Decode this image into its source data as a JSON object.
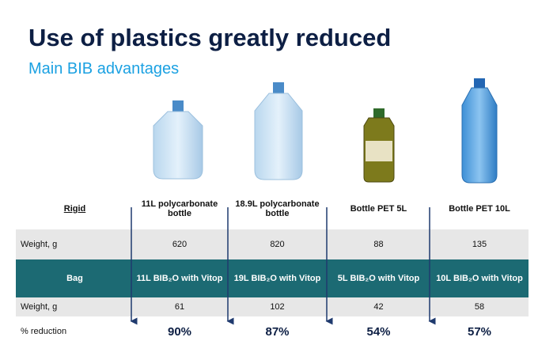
{
  "header": {
    "title": "Use of plastics greatly reduced",
    "subtitle": "Main BIB advantages"
  },
  "table": {
    "columns": [
      "Rigid",
      "11L polycarbonate bottle",
      "18.9L polycarbonate bottle",
      "Bottle PET 5L",
      "Bottle PET 10L"
    ],
    "rows": [
      [
        "Weight, g",
        620,
        820,
        88,
        135
      ],
      [
        "Bag",
        "11L BIB₂O with Vitop",
        "19L BIB₂O with Vitop",
        "5L BIB₂O with Vitop",
        "10L BIB₂O with Vitop"
      ],
      [
        "Weight, g",
        61,
        102,
        42,
        58
      ],
      [
        "% reduction",
        "90%",
        "87%",
        "54%",
        "57%"
      ]
    ]
  }
}
